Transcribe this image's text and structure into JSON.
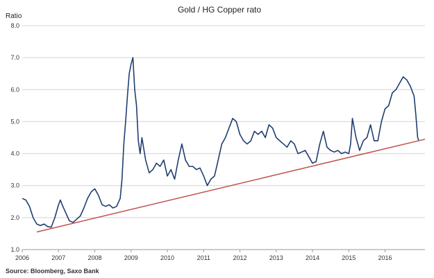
{
  "chart_data": {
    "type": "line",
    "title": "Gold / HG Copper rato",
    "ylabel": "Ratio",
    "xlabel": "",
    "source": "Source: Bloomberg, Saxo Bank",
    "xlim": [
      2006.0,
      2017.1
    ],
    "ylim": [
      1.0,
      8.0
    ],
    "x_ticks": [
      2006,
      2007,
      2008,
      2009,
      2010,
      2011,
      2012,
      2013,
      2014,
      2015,
      2016
    ],
    "x_tick_labels": [
      "2006",
      "2007",
      "2008",
      "2009",
      "2010",
      "2011",
      "2012",
      "2013",
      "2014",
      "2015",
      "2016"
    ],
    "y_ticks": [
      1.0,
      2.0,
      3.0,
      4.0,
      5.0,
      6.0,
      7.0,
      8.0
    ],
    "y_tick_labels": [
      "1.0",
      "2.0",
      "3.0",
      "4.0",
      "5.0",
      "6.0",
      "7.0",
      "8.0"
    ],
    "grid": true,
    "series": [
      {
        "color": "#1f3e6e",
        "x": [
          2006.0,
          2006.1,
          2006.2,
          2006.3,
          2006.4,
          2006.5,
          2006.6,
          2006.7,
          2006.8,
          2006.9,
          2007.0,
          2007.05,
          2007.1,
          2007.2,
          2007.3,
          2007.4,
          2007.5,
          2007.6,
          2007.7,
          2007.8,
          2007.9,
          2008.0,
          2008.1,
          2008.2,
          2008.3,
          2008.4,
          2008.5,
          2008.6,
          2008.7,
          2008.75,
          2008.8,
          2008.85,
          2008.9,
          2008.95,
          2009.0,
          2009.05,
          2009.1,
          2009.15,
          2009.2,
          2009.25,
          2009.3,
          2009.4,
          2009.5,
          2009.6,
          2009.7,
          2009.8,
          2009.9,
          2010.0,
          2010.1,
          2010.2,
          2010.3,
          2010.4,
          2010.5,
          2010.6,
          2010.7,
          2010.8,
          2010.9,
          2011.0,
          2011.1,
          2011.2,
          2011.3,
          2011.4,
          2011.5,
          2011.6,
          2011.7,
          2011.8,
          2011.9,
          2012.0,
          2012.1,
          2012.2,
          2012.3,
          2012.4,
          2012.5,
          2012.6,
          2012.7,
          2012.8,
          2012.9,
          2013.0,
          2013.1,
          2013.2,
          2013.3,
          2013.4,
          2013.5,
          2013.6,
          2013.7,
          2013.8,
          2013.9,
          2014.0,
          2014.1,
          2014.2,
          2014.3,
          2014.4,
          2014.5,
          2014.6,
          2014.7,
          2014.8,
          2014.9,
          2015.0,
          2015.05,
          2015.1,
          2015.2,
          2015.3,
          2015.4,
          2015.5,
          2015.6,
          2015.7,
          2015.8,
          2015.9,
          2016.0,
          2016.1,
          2016.2,
          2016.3,
          2016.4,
          2016.5,
          2016.6,
          2016.7,
          2016.8,
          2016.85,
          2016.9,
          2016.93
        ],
        "values": [
          2.6,
          2.55,
          2.35,
          2.0,
          1.8,
          1.75,
          1.8,
          1.72,
          1.7,
          2.0,
          2.4,
          2.55,
          2.4,
          2.15,
          1.9,
          1.85,
          1.95,
          2.05,
          2.3,
          2.6,
          2.8,
          2.9,
          2.7,
          2.4,
          2.35,
          2.4,
          2.3,
          2.35,
          2.6,
          3.2,
          4.3,
          5.0,
          5.8,
          6.5,
          6.8,
          7.0,
          6.0,
          5.5,
          4.4,
          4.0,
          4.5,
          3.8,
          3.4,
          3.5,
          3.7,
          3.6,
          3.8,
          3.3,
          3.5,
          3.2,
          3.8,
          4.3,
          3.8,
          3.6,
          3.6,
          3.5,
          3.55,
          3.3,
          3.0,
          3.2,
          3.3,
          3.8,
          4.3,
          4.5,
          4.8,
          5.1,
          5.0,
          4.6,
          4.4,
          4.3,
          4.4,
          4.7,
          4.6,
          4.7,
          4.5,
          4.9,
          4.8,
          4.5,
          4.4,
          4.3,
          4.2,
          4.4,
          4.3,
          4.0,
          4.05,
          4.1,
          3.9,
          3.7,
          3.75,
          4.3,
          4.7,
          4.2,
          4.1,
          4.05,
          4.1,
          4.0,
          4.05,
          4.0,
          4.3,
          5.1,
          4.5,
          4.1,
          4.4,
          4.5,
          4.9,
          4.4,
          4.4,
          5.0,
          5.4,
          5.5,
          5.9,
          6.0,
          6.2,
          6.4,
          6.3,
          6.1,
          5.8,
          5.2,
          4.5,
          4.4
        ]
      },
      {
        "color": "#c0504d",
        "x": [
          2006.4,
          2017.1
        ],
        "values": [
          1.55,
          4.45
        ]
      }
    ]
  }
}
